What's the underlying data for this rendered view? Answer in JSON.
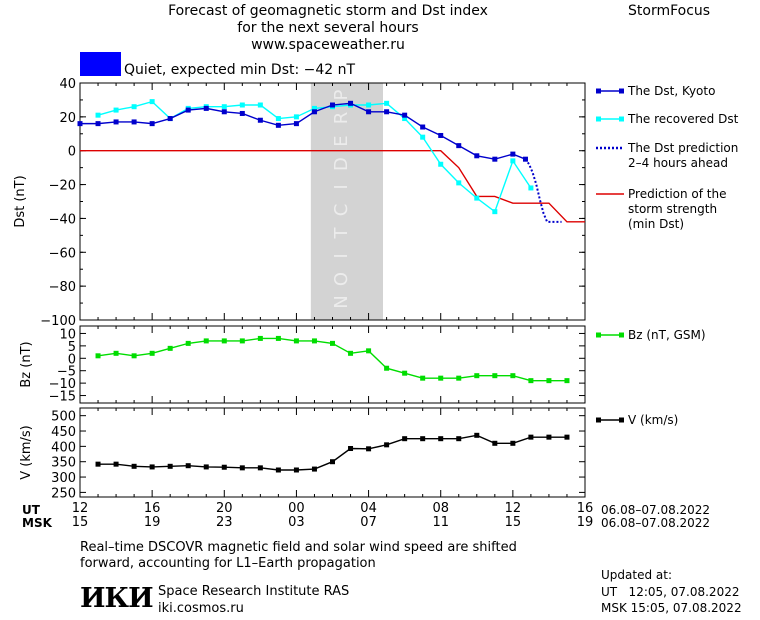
{
  "header": {
    "title_lines": [
      "Forecast of geomagnetic storm and Dst index",
      "for the next several hours",
      "www.spaceweather.ru"
    ],
    "brand": "StormFocus"
  },
  "status": {
    "color": "#0000ff",
    "text": "Quiet, expected min Dst: −42 nT"
  },
  "prediction_label": "PREDICTION",
  "legend": {
    "dst_kyoto": "The Dst, Kyoto",
    "recovered": "The recovered Dst",
    "prediction_lines": [
      "The Dst prediction",
      "2–4 hours ahead"
    ],
    "storm_lines": [
      "Prediction of the",
      "storm strength",
      "(min Dst)"
    ],
    "bz": "Bz (nT, GSM)",
    "v": "V (km/s)"
  },
  "time_axis": {
    "ut_label": "UT",
    "msk_label": "MSK",
    "ut_ticks": [
      "12",
      "16",
      "20",
      "00",
      "04",
      "08",
      "12",
      "16"
    ],
    "msk_ticks": [
      "15",
      "19",
      "23",
      "03",
      "07",
      "11",
      "15",
      "19"
    ],
    "ut_range": "06.08–07.08.2022",
    "msk_range": "06.08–07.08.2022"
  },
  "footer": {
    "note_lines": [
      "Real–time DSCOVR magnetic field and solar wind speed are shifted",
      "forward, accounting for L1–Earth propagation"
    ],
    "logo": "ИКИ",
    "institute": "Space Research Institute RAS",
    "site": "iki.cosmos.ru",
    "updated_label": "Updated at:",
    "updated_ut": "UT   12:05, 07.08.2022",
    "updated_msk": "MSK 15:05, 07.08.2022"
  },
  "colors": {
    "dst_kyoto": "#0000cc",
    "recovered": "#00ffff",
    "prediction": "#0000cc",
    "storm": "#dd0000",
    "bz": "#00dd00",
    "v": "#000000",
    "prediction_band": "#d3d3d3",
    "prediction_text": "#ececec"
  },
  "chart_data": [
    {
      "type": "line",
      "ylabel": "Dst (nT)",
      "ylim": [
        -100,
        40
      ],
      "yticks": [
        40,
        20,
        0,
        -20,
        -40,
        -60,
        -80,
        -100
      ],
      "x_hours_ut_from_12_on_06.08": true,
      "prediction_band_x": [
        24.8,
        28.8
      ],
      "series": [
        {
          "name": "The Dst, Kyoto",
          "x": [
            12,
            13,
            14,
            15,
            16,
            17,
            18,
            19,
            20,
            21,
            22,
            23,
            24,
            25,
            26,
            27,
            28,
            29,
            30,
            31,
            32,
            33,
            34,
            35,
            36,
            36.7
          ],
          "y": [
            16,
            16,
            17,
            17,
            16,
            19,
            24,
            25,
            23,
            22,
            18,
            15,
            16,
            23,
            27,
            28,
            23,
            23,
            21,
            14,
            9,
            3,
            -3,
            -5,
            -2,
            -5
          ]
        },
        {
          "name": "The recovered Dst",
          "x": [
            13,
            14,
            15,
            16,
            17,
            18,
            19,
            20,
            21,
            22,
            23,
            24,
            25,
            26,
            27,
            28,
            29,
            30,
            31,
            32,
            33,
            34,
            35,
            36,
            37
          ],
          "y": [
            21,
            24,
            26,
            29,
            19,
            25,
            26,
            26,
            27,
            27,
            19,
            20,
            25,
            26,
            27,
            27,
            28,
            19,
            8,
            -8,
            -19,
            -28,
            -36,
            -6,
            -22
          ]
        },
        {
          "name": "The Dst prediction 2–4 hours ahead",
          "x": [
            36.7,
            36.9,
            37.1,
            37.3,
            37.5,
            37.7,
            37.9,
            38.1,
            38.3,
            38.5,
            38.7
          ],
          "y": [
            -5,
            -8,
            -13,
            -20,
            -29,
            -37,
            -42,
            -42,
            -42,
            -42,
            -42
          ]
        },
        {
          "name": "Prediction of the storm strength (min Dst)",
          "x": [
            12,
            32,
            33,
            34,
            35,
            36,
            37,
            38,
            39,
            40
          ],
          "y": [
            0,
            0,
            -10,
            -27,
            -27,
            -31,
            -31,
            -31,
            -42,
            -42
          ]
        }
      ]
    },
    {
      "type": "line",
      "ylabel": "Bz (nT)",
      "ylim": [
        -18,
        13
      ],
      "yticks": [
        10,
        5,
        0,
        -5,
        -10,
        -15
      ],
      "series": [
        {
          "name": "Bz (nT, GSM)",
          "x": [
            13,
            14,
            15,
            16,
            17,
            18,
            19,
            20,
            21,
            22,
            23,
            24,
            25,
            26,
            27,
            28,
            29,
            30,
            31,
            32,
            33,
            34,
            35,
            36,
            37,
            38,
            39
          ],
          "y": [
            1,
            2,
            1,
            2,
            4,
            6,
            7,
            7,
            7,
            8,
            8,
            7,
            7,
            6,
            2,
            3,
            -4,
            -6,
            -8,
            -8,
            -8,
            -7,
            -7,
            -7,
            -9,
            -9,
            -9
          ]
        }
      ]
    },
    {
      "type": "line",
      "ylabel": "V (km/s)",
      "ylim": [
        235,
        525
      ],
      "yticks": [
        500,
        450,
        400,
        350,
        300,
        250
      ],
      "series": [
        {
          "name": "V (km/s)",
          "x": [
            13,
            14,
            15,
            16,
            17,
            18,
            19,
            20,
            21,
            22,
            23,
            24,
            25,
            26,
            27,
            28,
            29,
            30,
            31,
            32,
            33,
            34,
            35,
            36,
            37,
            38,
            39
          ],
          "y": [
            342,
            342,
            335,
            333,
            335,
            337,
            333,
            332,
            330,
            330,
            323,
            323,
            326,
            350,
            393,
            392,
            405,
            425,
            425,
            425,
            425,
            436,
            410,
            410,
            430,
            430,
            430
          ]
        }
      ]
    }
  ]
}
